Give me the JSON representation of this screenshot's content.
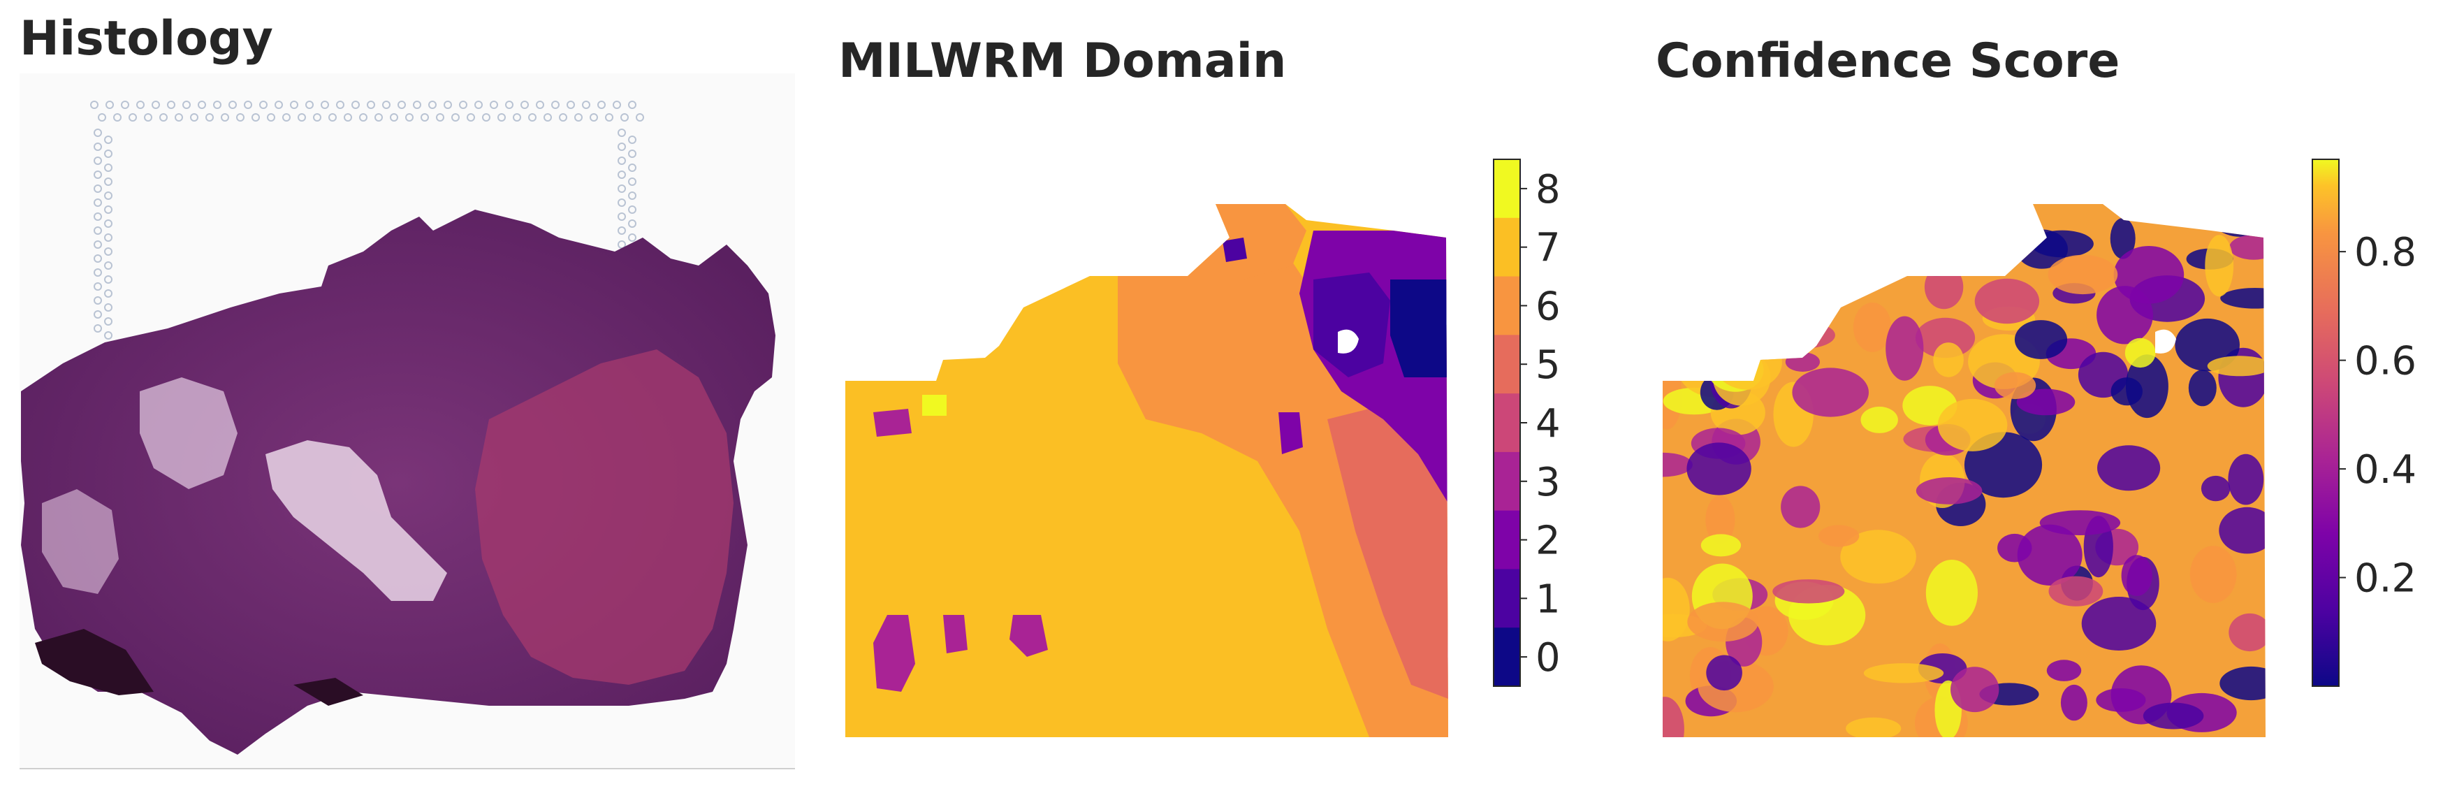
{
  "panels": {
    "histology": {
      "title": "Histology"
    },
    "domain": {
      "title": "MILWRM Domain"
    },
    "confidence": {
      "title": "Confidence Score"
    }
  },
  "chart_data": [
    {
      "type": "image",
      "title": "Histology",
      "description_colors": {
        "tissue": "#6b2a6e",
        "stroma": "#a0336a",
        "lumen": "#e9d3e6",
        "background": "#fafafa"
      }
    },
    {
      "type": "heatmap",
      "title": "MILWRM Domain",
      "colormap": "plasma",
      "colorbar": {
        "ticks": [
          0,
          1,
          2,
          3,
          4,
          5,
          6,
          7,
          8
        ],
        "vmin": -0.5,
        "vmax": 8.5,
        "discrete": true
      },
      "dominant_value": 7,
      "palette": {
        "0": "#0d0887",
        "1": "#4c02a1",
        "2": "#7e03a8",
        "3": "#a92395",
        "4": "#cc4778",
        "5": "#e66c5c",
        "6": "#f89540",
        "7": "#fbbf24",
        "8": "#f0f921"
      }
    },
    {
      "type": "heatmap",
      "title": "Confidence Score",
      "colormap": "plasma",
      "colorbar": {
        "ticks": [
          0.2,
          0.4,
          0.6,
          0.8
        ],
        "vmin": 0.0,
        "vmax": 0.97
      }
    }
  ]
}
